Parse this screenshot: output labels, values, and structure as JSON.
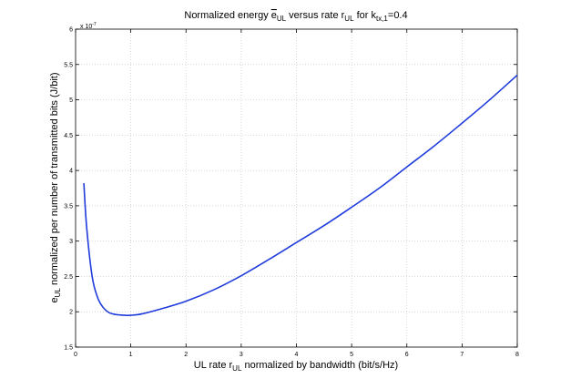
{
  "chart_data": {
    "type": "line",
    "title": {
      "pre": "Normalized energy ",
      "e": "e",
      "e_sub": "UL",
      "mid": " versus rate r",
      "r_sub": "UL",
      "for": " for k",
      "k_sub": "tx,1",
      "val": "=0.4"
    },
    "xlabel": {
      "pre": "UL rate r",
      "sub": "UL",
      "post": " normalized by bandwidth (bit/s/Hz)"
    },
    "ylabel": {
      "e": "e",
      "sub": "UL",
      "post": "  normalized per number of transmitted bits (J/bit)"
    },
    "y_exponent": {
      "base": "x 10",
      "exp": "-7"
    },
    "xlim": [
      0,
      8
    ],
    "ylim": [
      1.5,
      6
    ],
    "xticks": [
      "0",
      "1",
      "2",
      "3",
      "4",
      "5",
      "6",
      "7",
      "8"
    ],
    "yticks": [
      "1.5",
      "2",
      "2.5",
      "3",
      "3.5",
      "4",
      "4.5",
      "5",
      "5.5",
      "6"
    ],
    "grid": true,
    "series": [
      {
        "color": "#1f3bdb",
        "x": [
          0.15,
          0.2,
          0.3,
          0.4,
          0.5,
          0.6,
          0.7,
          0.8,
          0.9,
          1.0,
          1.2,
          1.5,
          2.0,
          2.5,
          3.0,
          3.5,
          4.0,
          4.5,
          5.0,
          5.5,
          6.0,
          6.5,
          7.0,
          7.5,
          8.0
        ],
        "y": [
          3.82,
          3.2,
          2.5,
          2.2,
          2.06,
          1.99,
          1.965,
          1.955,
          1.95,
          1.95,
          1.97,
          2.03,
          2.15,
          2.31,
          2.51,
          2.74,
          2.98,
          3.22,
          3.48,
          3.75,
          4.05,
          4.35,
          4.67,
          5.0,
          5.35
        ]
      }
    ]
  }
}
